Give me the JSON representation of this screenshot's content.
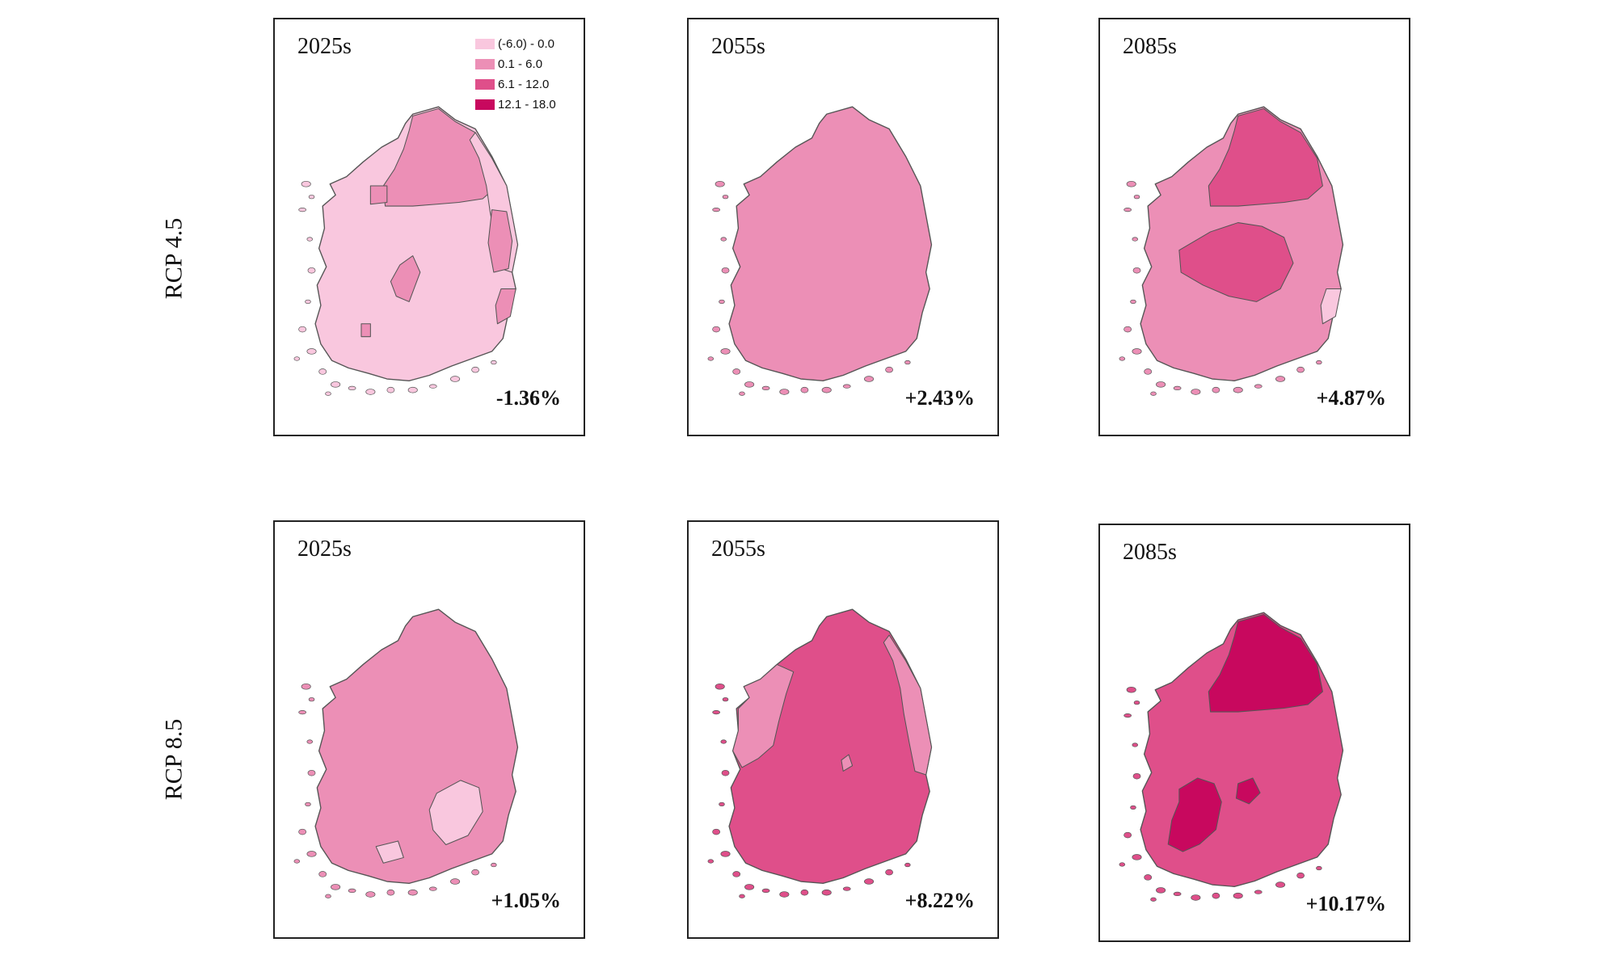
{
  "figure": {
    "rows": [
      {
        "label": "RCP 4.5",
        "panels": [
          {
            "period": "2025s",
            "change": "-1.36%",
            "base_class": 1,
            "regions": [
              {
                "name": "north-mountains",
                "class": 2
              },
              {
                "name": "east-coast",
                "class": 1
              },
              {
                "name": "east-central-strip",
                "class": 2
              },
              {
                "name": "central-west-patch",
                "class": 2
              },
              {
                "name": "central-south-patch",
                "class": 2
              },
              {
                "name": "southeast-coast-patch",
                "class": 2
              },
              {
                "name": "southwest-patch",
                "class": 2
              }
            ]
          },
          {
            "period": "2055s",
            "change": "+2.43%",
            "base_class": 2,
            "regions": []
          },
          {
            "period": "2085s",
            "change": "+4.87%",
            "base_class": 2,
            "regions": [
              {
                "name": "north-mountains",
                "class": 3
              },
              {
                "name": "central-interior",
                "class": 3
              },
              {
                "name": "southeast-coast-patch",
                "class": 1
              }
            ]
          }
        ]
      },
      {
        "label": "RCP 8.5",
        "panels": [
          {
            "period": "2025s",
            "change": "+1.05%",
            "base_class": 2,
            "regions": [
              {
                "name": "southeast-interior",
                "class": 1
              },
              {
                "name": "south-coast-patch",
                "class": 1
              }
            ]
          },
          {
            "period": "2055s",
            "change": "+8.22%",
            "base_class": 3,
            "regions": [
              {
                "name": "west-coast",
                "class": 2
              },
              {
                "name": "east-coast",
                "class": 2
              },
              {
                "name": "central-small-patch",
                "class": 2
              }
            ]
          },
          {
            "period": "2085s",
            "change": "+10.17%",
            "base_class": 3,
            "regions": [
              {
                "name": "north-mountains",
                "class": 4
              },
              {
                "name": "southwest-cluster",
                "class": 4
              },
              {
                "name": "south-central-patch",
                "class": 4
              }
            ]
          }
        ]
      }
    ],
    "legend": {
      "items": [
        {
          "label": "(-6.0) - 0.0",
          "color": "#f9c7de",
          "class": 1
        },
        {
          "label": "0.1 - 6.0",
          "color": "#ec8fb6",
          "class": 2
        },
        {
          "label": "6.1 - 12.0",
          "color": "#df4f8a",
          "class": 3
        },
        {
          "label": "12.1 - 18.0",
          "color": "#c8085e",
          "class": 4
        }
      ]
    },
    "border_color": "#555555"
  }
}
